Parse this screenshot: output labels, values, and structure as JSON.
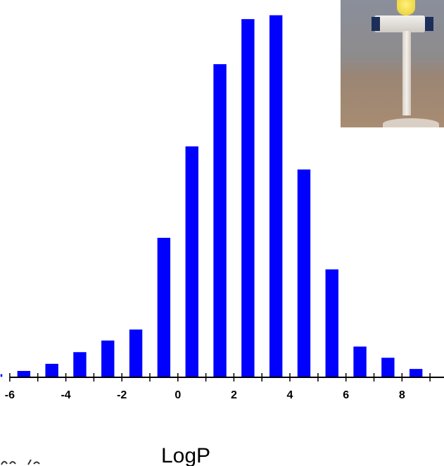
{
  "chart_data": {
    "type": "bar",
    "x": [
      -6,
      -5,
      -4,
      -3,
      -2,
      -1,
      0,
      1,
      2,
      3,
      4,
      5,
      6,
      7,
      8,
      9
    ],
    "values": [
      1.7,
      3.2,
      6.5,
      11.9,
      17.3,
      22.4,
      64.9,
      107.3,
      145.4,
      166.3,
      168.1,
      96.6,
      50.3,
      14.5,
      9.3,
      4.1
    ],
    "xlabel": "LogP",
    "ylabel": "",
    "title": "",
    "xlim": [
      -6.35,
      9.5
    ],
    "ylim": [
      0,
      171
    ],
    "tick_values": [
      -6,
      -4,
      -2,
      0,
      2,
      4,
      6,
      8
    ],
    "tick_labels": [
      "-6",
      "-4",
      "-2",
      "0",
      "2",
      "4",
      "6",
      "8"
    ],
    "grid": false,
    "legend": "none",
    "bar_color": "#0000ff"
  },
  "photo": {
    "description_icon": "lab-apparatus-photo"
  }
}
